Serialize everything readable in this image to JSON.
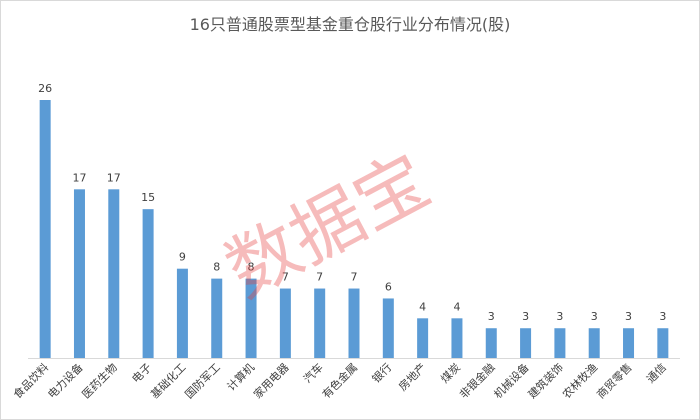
{
  "chart_data": {
    "type": "bar",
    "title": "16只普通股票型基金重仓股行业分布情况(股)",
    "categories": [
      "食品饮料",
      "电力设备",
      "医药生物",
      "电子",
      "基础化工",
      "国防军工",
      "计算机",
      "家用电器",
      "汽车",
      "有色金属",
      "银行",
      "房地产",
      "煤炭",
      "非银金融",
      "机械设备",
      "建筑装饰",
      "农林牧渔",
      "商贸零售",
      "通信"
    ],
    "values": [
      26,
      17,
      17,
      15,
      9,
      8,
      8,
      7,
      7,
      7,
      6,
      4,
      4,
      3,
      3,
      3,
      3,
      3,
      3
    ],
    "color": "#5b9bd5",
    "ylim": [
      0,
      26
    ],
    "watermark": "数据宝"
  }
}
